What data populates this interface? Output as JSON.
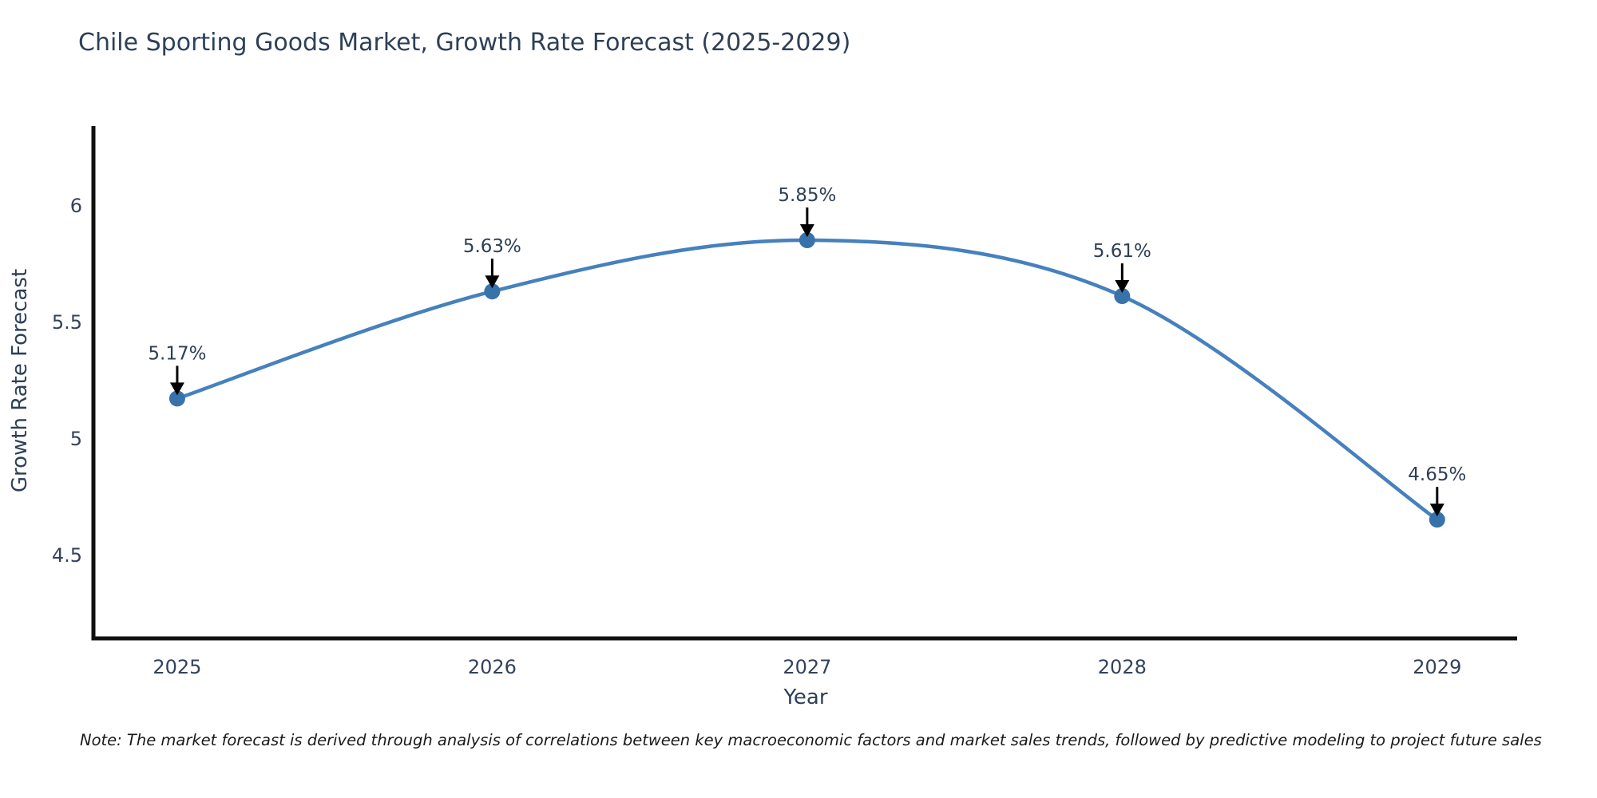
{
  "note": "Note: The market forecast is derived through analysis of correlations between key macroeconomic factors and market sales trends, followed by predictive modeling to project future sales",
  "chart_data": {
    "type": "line",
    "title": "Chile Sporting Goods Market, Growth Rate Forecast (2025-2029)",
    "xlabel": "Year",
    "ylabel": "Growth Rate Forecast",
    "x": [
      2025,
      2026,
      2027,
      2028,
      2029
    ],
    "values": [
      5.17,
      5.63,
      5.85,
      5.61,
      4.65
    ],
    "point_labels": [
      "5.17%",
      "5.63%",
      "5.85%",
      "5.61%",
      "4.65%"
    ],
    "x_tick_labels": [
      "2025",
      "2026",
      "2027",
      "2028",
      "2029"
    ],
    "y_ticks": [
      4.5,
      5,
      5.5,
      6
    ],
    "y_tick_labels": [
      "4.5",
      "5",
      "5.5",
      "6"
    ],
    "ylim": [
      4.14,
      6.34
    ],
    "xlim": [
      2024.734,
      2029.254
    ],
    "grid": false,
    "legend": "none",
    "line_shape": "spline",
    "colors": {
      "line": "#4681bd",
      "marker": "#3872ab",
      "axis": "#111111",
      "tick_text": "#33425c",
      "annotation_text": "#2e3f54",
      "annotation_arrow": "#000000"
    }
  }
}
